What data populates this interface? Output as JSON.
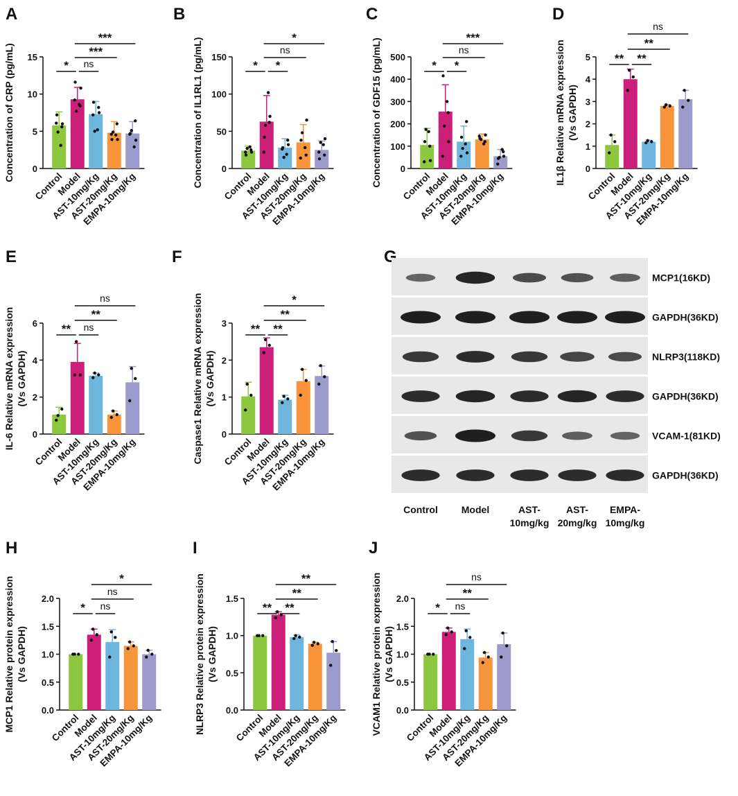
{
  "colors": {
    "Control": "#8dc63f",
    "Model": "#cc1f7a",
    "AST-10mg/Kg": "#6fb6df",
    "AST-20mg/Kg": "#f7943c",
    "EMPA-10mg/Kg": "#9d9bcc",
    "text": "#111111",
    "blot_bg": "#e8e8e8",
    "band": "#141414"
  },
  "chart_data": [
    {
      "panel": "A",
      "type": "bar",
      "ylabel": [
        "Concentration of CRP (pg/mL)"
      ],
      "categories": [
        "Control",
        "Model",
        "AST-10mg/Kg",
        "AST-20mg/Kg",
        "EMPA-10mg/Kg"
      ],
      "ylim": [
        0,
        15
      ],
      "yticks": [
        "0",
        "5",
        "10",
        "15"
      ],
      "values": [
        5.8,
        9.3,
        7.3,
        4.8,
        4.7
      ],
      "errors": [
        1.8,
        1.6,
        1.7,
        1.5,
        1.6
      ],
      "points": [
        [
          6.1,
          5.6,
          4.9,
          3.1,
          7.2,
          6.0
        ],
        [
          9.2,
          8.4,
          7.7,
          8.6,
          11.6,
          10.8
        ],
        [
          7.2,
          8.2,
          5.0,
          5.2,
          8.9,
          7.5
        ],
        [
          4.6,
          6.0,
          4.9,
          4.5,
          3.9,
          3.9
        ],
        [
          4.6,
          6.4,
          5.1,
          2.9,
          4.7,
          3.8
        ]
      ],
      "comparisons": [
        {
          "from": 0,
          "to": 1,
          "label": "*",
          "level": 0
        },
        {
          "from": 1,
          "to": 2,
          "label": "ns",
          "level": 0
        },
        {
          "from": 1,
          "to": 3,
          "label": "***",
          "level": 1
        },
        {
          "from": 1,
          "to": 4,
          "label": "***",
          "level": 2
        }
      ]
    },
    {
      "panel": "B",
      "type": "bar",
      "ylabel": [
        "Concentration of IL1RL1 (pg/mL)"
      ],
      "categories": [
        "Control",
        "Model",
        "AST-10mg/Kg",
        "AST-20mg/Kg",
        "EMPA-10mg/Kg"
      ],
      "ylim": [
        0,
        150
      ],
      "yticks": [
        "0",
        "50",
        "100",
        "150"
      ],
      "values": [
        24,
        63,
        28,
        35,
        25
      ],
      "errors": [
        6,
        35,
        12,
        24,
        12
      ],
      "points": [
        [
          22,
          25,
          27,
          29,
          18,
          22
        ],
        [
          22,
          62,
          58,
          102,
          42,
          70
        ],
        [
          26,
          38,
          15,
          19,
          28,
          32
        ],
        [
          14,
          18,
          48,
          28,
          38,
          65
        ],
        [
          22,
          18,
          35,
          32,
          13,
          40
        ]
      ],
      "comparisons": [
        {
          "from": 0,
          "to": 1,
          "label": "*",
          "level": 0
        },
        {
          "from": 1,
          "to": 2,
          "label": "*",
          "level": 0
        },
        {
          "from": 1,
          "to": 3,
          "label": "ns",
          "level": 1
        },
        {
          "from": 1,
          "to": 4,
          "label": "*",
          "level": 2
        }
      ]
    },
    {
      "panel": "C",
      "type": "bar",
      "ylabel": [
        "Concentration of GDF15 (pg/mL)"
      ],
      "categories": [
        "Control",
        "Model",
        "AST-10mg/Kg",
        "AST-20mg/Kg",
        "EMPA-10mg/Kg"
      ],
      "ylim": [
        0,
        500
      ],
      "yticks": [
        "0",
        "100",
        "200",
        "300",
        "400",
        "500"
      ],
      "values": [
        105,
        255,
        120,
        130,
        55
      ],
      "errors": [
        75,
        120,
        70,
        25,
        30
      ],
      "points": [
        [
          30,
          100,
          175,
          165,
          120,
          35
        ],
        [
          55,
          250,
          190,
          300,
          415,
          120
        ],
        [
          55,
          210,
          90,
          110,
          140,
          70
        ],
        [
          145,
          120,
          130,
          110,
          135,
          150
        ],
        [
          20,
          75,
          50,
          85,
          45,
          55
        ]
      ],
      "comparisons": [
        {
          "from": 0,
          "to": 1,
          "label": "*",
          "level": 0
        },
        {
          "from": 1,
          "to": 2,
          "label": "*",
          "level": 0
        },
        {
          "from": 1,
          "to": 3,
          "label": "ns",
          "level": 1
        },
        {
          "from": 1,
          "to": 4,
          "label": "***",
          "level": 2
        }
      ]
    },
    {
      "panel": "D",
      "type": "bar",
      "ylabel": [
        "IL1β  Relative mRNA expression",
        "(Vs GAPDH)"
      ],
      "categories": [
        "Control",
        "Model",
        "AST-10mg/Kg",
        "AST-20mg/Kg",
        "EMPA-10mg/Kg"
      ],
      "ylim": [
        0,
        5
      ],
      "yticks": [
        "0",
        "1",
        "2",
        "3",
        "4",
        "5"
      ],
      "values": [
        1.05,
        4.0,
        1.2,
        2.8,
        3.1
      ],
      "errors": [
        0.45,
        0.45,
        0.07,
        0.07,
        0.4
      ],
      "points": [
        [
          0.7,
          1.2,
          1.5
        ],
        [
          3.5,
          4.1,
          4.4
        ],
        [
          1.15,
          1.2,
          1.25
        ],
        [
          2.75,
          2.8,
          2.85
        ],
        [
          2.75,
          3.05,
          3.5
        ]
      ],
      "comparisons": [
        {
          "from": 0,
          "to": 1,
          "label": "**",
          "level": 0
        },
        {
          "from": 1,
          "to": 2,
          "label": "**",
          "level": 0
        },
        {
          "from": 1,
          "to": 3,
          "label": "**",
          "level": 1
        },
        {
          "from": 1,
          "to": 4,
          "label": "ns",
          "level": 2
        }
      ]
    },
    {
      "panel": "E",
      "type": "bar",
      "ylabel": [
        "IL-6 Relative mRNA expression",
        "(Vs GAPDH)"
      ],
      "categories": [
        "Control",
        "Model",
        "AST-10mg/Kg",
        "AST-20mg/Kg",
        "EMPA-10mg/Kg"
      ],
      "ylim": [
        0,
        6
      ],
      "yticks": [
        "0",
        "2",
        "4",
        "6"
      ],
      "values": [
        1.05,
        3.9,
        3.15,
        1.05,
        2.8
      ],
      "errors": [
        0.4,
        1.0,
        0.15,
        0.2,
        0.85
      ],
      "points": [
        [
          0.75,
          1.35,
          1.0
        ],
        [
          3.2,
          3.2,
          5.0
        ],
        [
          3.05,
          3.2,
          3.3
        ],
        [
          0.9,
          1.05,
          1.25
        ],
        [
          1.8,
          3.0,
          3.55
        ]
      ],
      "comparisons": [
        {
          "from": 0,
          "to": 1,
          "label": "**",
          "level": 0
        },
        {
          "from": 1,
          "to": 2,
          "label": "ns",
          "level": 0
        },
        {
          "from": 1,
          "to": 3,
          "label": "**",
          "level": 1
        },
        {
          "from": 1,
          "to": 4,
          "label": "ns",
          "level": 2
        }
      ]
    },
    {
      "panel": "F",
      "type": "bar",
      "ylabel": [
        "Caspase1 Relative mRNA expression",
        "(Vs GAPDH)"
      ],
      "categories": [
        "Control",
        "Model",
        "AST-10mg/Kg",
        "AST-20mg/Kg",
        "EMPA-10mg/Kg"
      ],
      "ylim": [
        0,
        3
      ],
      "yticks": [
        "0",
        "1",
        "2",
        "3"
      ],
      "values": [
        1.02,
        2.35,
        0.93,
        1.43,
        1.57
      ],
      "errors": [
        0.38,
        0.25,
        0.12,
        0.32,
        0.27
      ],
      "points": [
        [
          0.65,
          1.05,
          1.35
        ],
        [
          2.2,
          2.4,
          2.55
        ],
        [
          0.85,
          0.95,
          1.02
        ],
        [
          1.05,
          1.45,
          1.75
        ],
        [
          1.35,
          1.55,
          1.85
        ]
      ],
      "comparisons": [
        {
          "from": 0,
          "to": 1,
          "label": "**",
          "level": 0
        },
        {
          "from": 1,
          "to": 2,
          "label": "**",
          "level": 0
        },
        {
          "from": 1,
          "to": 3,
          "label": "**",
          "level": 1
        },
        {
          "from": 1,
          "to": 4,
          "label": "*",
          "level": 2
        }
      ]
    },
    {
      "panel": "H",
      "type": "bar",
      "ylabel": [
        "MCP1 Relative protein expression",
        "(Vs GAPDH)"
      ],
      "categories": [
        "Control",
        "Model",
        "AST-10mg/Kg",
        "AST-20mg/Kg",
        "EMPA-10mg/Kg"
      ],
      "ylim": [
        0,
        2.0
      ],
      "yticks": [
        "0.0",
        "0.5",
        "1.0",
        "1.5",
        "2.0"
      ],
      "values": [
        1.0,
        1.35,
        1.22,
        1.15,
        1.0
      ],
      "errors": [
        0.0,
        0.1,
        0.22,
        0.07,
        0.07
      ],
      "points": [
        [
          1.0,
          1.0,
          1.0
        ],
        [
          1.25,
          1.35,
          1.45
        ],
        [
          0.95,
          1.3,
          1.4
        ],
        [
          1.1,
          1.15,
          1.22
        ],
        [
          0.95,
          1.0,
          1.07
        ]
      ],
      "comparisons": [
        {
          "from": 0,
          "to": 1,
          "label": "*",
          "level": 0
        },
        {
          "from": 1,
          "to": 2,
          "label": "ns",
          "level": 0
        },
        {
          "from": 1,
          "to": 3,
          "label": "ns",
          "level": 1
        },
        {
          "from": 1,
          "to": 4,
          "label": "*",
          "level": 2
        }
      ]
    },
    {
      "panel": "I",
      "type": "bar",
      "ylabel": [
        "NLRP3 Relative protein expression",
        "(Vs GAPDH)"
      ],
      "categories": [
        "Control",
        "Model",
        "AST-10mg/Kg",
        "AST-20mg/Kg",
        "EMPA-10mg/Kg"
      ],
      "ylim": [
        0,
        1.5
      ],
      "yticks": [
        "0.0",
        "0.5",
        "1.0",
        "1.5"
      ],
      "values": [
        1.0,
        1.28,
        0.98,
        0.89,
        0.77
      ],
      "errors": [
        0.0,
        0.04,
        0.03,
        0.02,
        0.15
      ],
      "points": [
        [
          1.0,
          1.0,
          1.0
        ],
        [
          1.24,
          1.28,
          1.32
        ],
        [
          0.96,
          0.98,
          1.0
        ],
        [
          0.87,
          0.89,
          0.91
        ],
        [
          0.6,
          0.8,
          0.92
        ]
      ],
      "comparisons": [
        {
          "from": 0,
          "to": 1,
          "label": "**",
          "level": 0
        },
        {
          "from": 1,
          "to": 2,
          "label": "**",
          "level": 0
        },
        {
          "from": 1,
          "to": 3,
          "label": "**",
          "level": 1
        },
        {
          "from": 1,
          "to": 4,
          "label": "**",
          "level": 2
        }
      ]
    },
    {
      "panel": "J",
      "type": "bar",
      "ylabel": [
        "VCAM1 Relative protein expression",
        "(Vs GAPDH)"
      ],
      "categories": [
        "Control",
        "Model",
        "AST-10mg/Kg",
        "AST-20mg/Kg",
        "EMPA-10mg/Kg"
      ],
      "ylim": [
        0,
        2.0
      ],
      "yticks": [
        "0.0",
        "0.5",
        "1.0",
        "1.5",
        "2.0"
      ],
      "values": [
        1.0,
        1.4,
        1.27,
        0.94,
        1.18
      ],
      "errors": [
        0.0,
        0.07,
        0.18,
        0.09,
        0.2
      ],
      "points": [
        [
          1.0,
          1.0,
          1.0
        ],
        [
          1.35,
          1.4,
          1.47
        ],
        [
          1.1,
          1.3,
          1.42
        ],
        [
          0.85,
          0.95,
          1.03
        ],
        [
          0.95,
          1.15,
          1.38
        ]
      ],
      "comparisons": [
        {
          "from": 0,
          "to": 1,
          "label": "*",
          "level": 0
        },
        {
          "from": 1,
          "to": 2,
          "label": "ns",
          "level": 0
        },
        {
          "from": 1,
          "to": 3,
          "label": "**",
          "level": 1
        },
        {
          "from": 1,
          "to": 4,
          "label": "ns",
          "level": 2
        }
      ]
    }
  ],
  "western_blot": {
    "panel": "G",
    "rows": [
      {
        "label": "MCP1(16KD)",
        "intensity": [
          0.45,
          0.95,
          0.65,
          0.6,
          0.5
        ]
      },
      {
        "label": "GAPDH(36KD)",
        "intensity": [
          1.0,
          1.0,
          1.0,
          1.0,
          1.0
        ]
      },
      {
        "label": "NLRP3(118KD)",
        "intensity": [
          0.8,
          0.9,
          0.8,
          0.7,
          0.65
        ]
      },
      {
        "label": "GAPDH(36KD)",
        "intensity": [
          0.9,
          0.95,
          0.9,
          0.95,
          0.9
        ]
      },
      {
        "label": "VCAM-1(81KD)",
        "intensity": [
          0.6,
          1.0,
          0.8,
          0.5,
          0.45
        ]
      },
      {
        "label": "GAPDH(36KD)",
        "intensity": [
          0.9,
          0.9,
          0.9,
          0.9,
          0.9
        ]
      }
    ],
    "lanes": [
      [
        "Control"
      ],
      [
        "Model"
      ],
      [
        "AST-",
        "10mg/kg"
      ],
      [
        "AST-",
        "20mg/kg"
      ],
      [
        "EMPA-",
        "10mg/kg"
      ]
    ]
  }
}
